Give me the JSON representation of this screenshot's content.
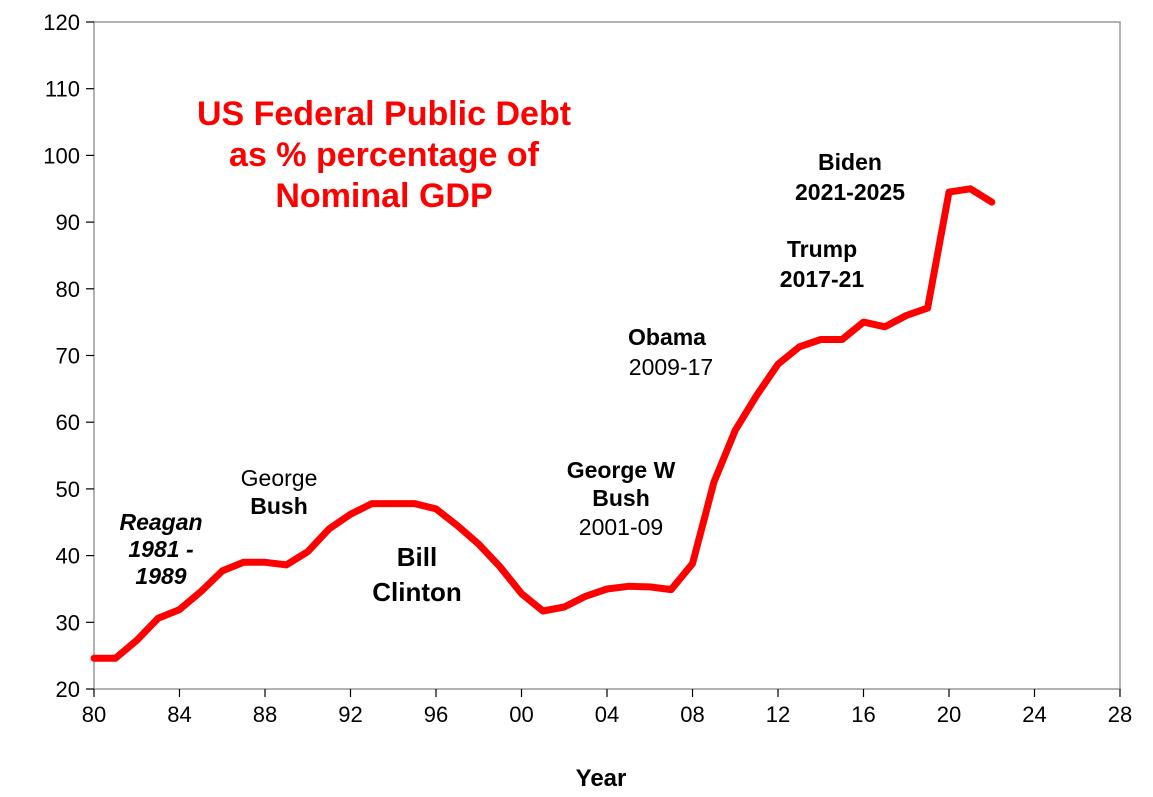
{
  "chart_data": {
    "type": "line",
    "title": [
      "US   Federal Public  Debt",
      "as  % percentage of",
      "Nominal GDP"
    ],
    "xlabel": "Year",
    "ylabel": "",
    "xlim": [
      1980,
      2028
    ],
    "ylim": [
      20,
      120
    ],
    "grid": false,
    "x_ticks": [
      {
        "value": 1980,
        "label": "80"
      },
      {
        "value": 1984,
        "label": "84"
      },
      {
        "value": 1988,
        "label": "88"
      },
      {
        "value": 1992,
        "label": "92"
      },
      {
        "value": 1996,
        "label": "96"
      },
      {
        "value": 2000,
        "label": "00"
      },
      {
        "value": 2004,
        "label": "04"
      },
      {
        "value": 2008,
        "label": "08"
      },
      {
        "value": 2012,
        "label": "12"
      },
      {
        "value": 2016,
        "label": "16"
      },
      {
        "value": 2020,
        "label": "20"
      },
      {
        "value": 2024,
        "label": "24"
      },
      {
        "value": 2028,
        "label": "28"
      }
    ],
    "y_ticks": [
      {
        "value": 20,
        "label": "20"
      },
      {
        "value": 30,
        "label": "30"
      },
      {
        "value": 40,
        "label": "40"
      },
      {
        "value": 50,
        "label": "50"
      },
      {
        "value": 60,
        "label": "60"
      },
      {
        "value": 70,
        "label": "70"
      },
      {
        "value": 80,
        "label": "80"
      },
      {
        "value": 90,
        "label": "90"
      },
      {
        "value": 100,
        "label": "100"
      },
      {
        "value": 110,
        "label": "110"
      },
      {
        "value": 120,
        "label": "120"
      }
    ],
    "series": [
      {
        "color": "#ff0000",
        "x": [
          1980,
          1981,
          1982,
          1983,
          1984,
          1985,
          1986,
          1987,
          1988,
          1989,
          1990,
          1991,
          1992,
          1993,
          1994,
          1995,
          1996,
          1997,
          1998,
          1999,
          2000,
          2001,
          2002,
          2003,
          2004,
          2005,
          2006,
          2007,
          2008,
          2009,
          2010,
          2011,
          2012,
          2013,
          2014,
          2015,
          2016,
          2017,
          2018,
          2019,
          2020,
          2021,
          2022
        ],
        "values": [
          24.6,
          24.6,
          27.3,
          30.6,
          31.9,
          34.6,
          37.7,
          39.0,
          39.0,
          38.6,
          40.6,
          44.0,
          46.2,
          47.8,
          47.8,
          47.8,
          47.0,
          44.5,
          41.7,
          38.3,
          34.3,
          31.7,
          32.3,
          33.9,
          35.0,
          35.4,
          35.3,
          34.9,
          38.8,
          51.0,
          58.8,
          64.0,
          68.7,
          71.3,
          72.4,
          72.4,
          75.0,
          74.3,
          76.0,
          77.1,
          94.5,
          95.0,
          93.0
        ]
      }
    ],
    "annotations": [
      {
        "id": "reagan",
        "lines": [
          "Reagan",
          "1981 -",
          "1989"
        ],
        "style": "bold-italic"
      },
      {
        "id": "george-bush",
        "lines": [
          "George",
          "Bush"
        ],
        "style": [
          "normal",
          "bold"
        ]
      },
      {
        "id": "bill-clinton",
        "lines": [
          "Bill",
          "Clinton"
        ],
        "style": "bold"
      },
      {
        "id": "george-w-bush",
        "lines": [
          "George W",
          "Bush",
          "2001-09"
        ],
        "style": [
          "bold",
          "bold",
          "normal"
        ]
      },
      {
        "id": "obama",
        "lines": [
          "Obama",
          "2009-17"
        ],
        "style": [
          "bold",
          "normal"
        ]
      },
      {
        "id": "trump",
        "lines": [
          "Trump",
          "2017-21"
        ],
        "style": "bold"
      },
      {
        "id": "biden",
        "lines": [
          "Biden",
          "2021-2025"
        ],
        "style": "bold"
      }
    ]
  }
}
